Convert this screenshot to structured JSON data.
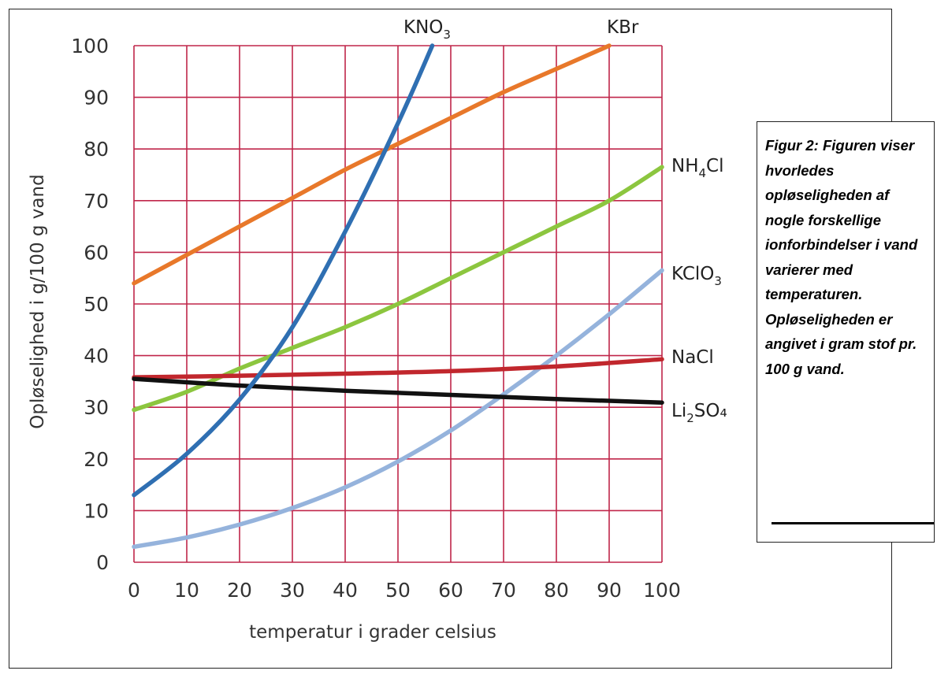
{
  "caption": {
    "text": "Figur 2: Figuren viser hvorledes opløseligheden af nogle forskellige ionforbindelser i vand varierer med temperaturen. Opløseligheden er angivet i gram stof pr. 100 g vand."
  },
  "chart_data": {
    "type": "line",
    "xlabel": "temperatur i grader celsius",
    "ylabel": "Opløselighed i g/100 g vand",
    "xlim": [
      0,
      100
    ],
    "ylim": [
      0,
      100
    ],
    "x_ticks": [
      "0",
      "10",
      "20",
      "30",
      "40",
      "50",
      "60",
      "70",
      "80",
      "90",
      "100"
    ],
    "y_ticks": [
      "0",
      "10",
      "20",
      "30",
      "40",
      "50",
      "60",
      "70",
      "80",
      "90",
      "100"
    ],
    "grid": true,
    "grid_color": "#c0264a",
    "legend": "labels at line ends",
    "series": [
      {
        "name": "KNO3",
        "label_main": "KNO",
        "label_sub": "3",
        "label_after": "",
        "color": "#2f6fb2",
        "x": [
          0,
          10,
          20,
          30,
          40,
          50,
          56.5
        ],
        "y": [
          13,
          21,
          31.5,
          45.5,
          64,
          85,
          100
        ]
      },
      {
        "name": "KBr",
        "label_main": "KBr",
        "label_sub": "",
        "label_after": "",
        "color": "#e8782a",
        "x": [
          0,
          10,
          20,
          30,
          40,
          50,
          60,
          70,
          80,
          90
        ],
        "y": [
          54,
          59.5,
          65,
          70.5,
          76,
          81,
          86,
          91,
          95.5,
          100
        ]
      },
      {
        "name": "NH4Cl",
        "label_main": "NH",
        "label_sub": "4",
        "label_after": "Cl",
        "color": "#8cc63f",
        "x": [
          0,
          10,
          20,
          30,
          40,
          50,
          60,
          70,
          80,
          90,
          100
        ],
        "y": [
          29.5,
          33,
          37.5,
          41.5,
          45.5,
          50,
          55,
          60,
          65,
          70,
          76.5
        ]
      },
      {
        "name": "KClO3",
        "label_main": "KClO",
        "label_sub": "3",
        "label_after": "",
        "color": "#95b3dc",
        "x": [
          0,
          10,
          20,
          30,
          40,
          50,
          60,
          70,
          80,
          90,
          100
        ],
        "y": [
          3,
          4.8,
          7.3,
          10.5,
          14.5,
          19.5,
          25.5,
          32.5,
          40,
          48,
          56.5
        ]
      },
      {
        "name": "NaCl",
        "label_main": "NaCl",
        "label_sub": "",
        "label_after": "",
        "color": "#c1272d",
        "x": [
          0,
          20,
          40,
          60,
          80,
          100
        ],
        "y": [
          35.8,
          36.1,
          36.5,
          37,
          37.9,
          39.3
        ]
      },
      {
        "name": "Li2SO4",
        "label_main": "Li",
        "label_sub": "2",
        "label_after": "SO₄",
        "color": "#111111",
        "x": [
          0,
          20,
          40,
          60,
          80,
          100
        ],
        "y": [
          35.5,
          34.2,
          33.2,
          32.4,
          31.6,
          30.9
        ]
      }
    ]
  }
}
